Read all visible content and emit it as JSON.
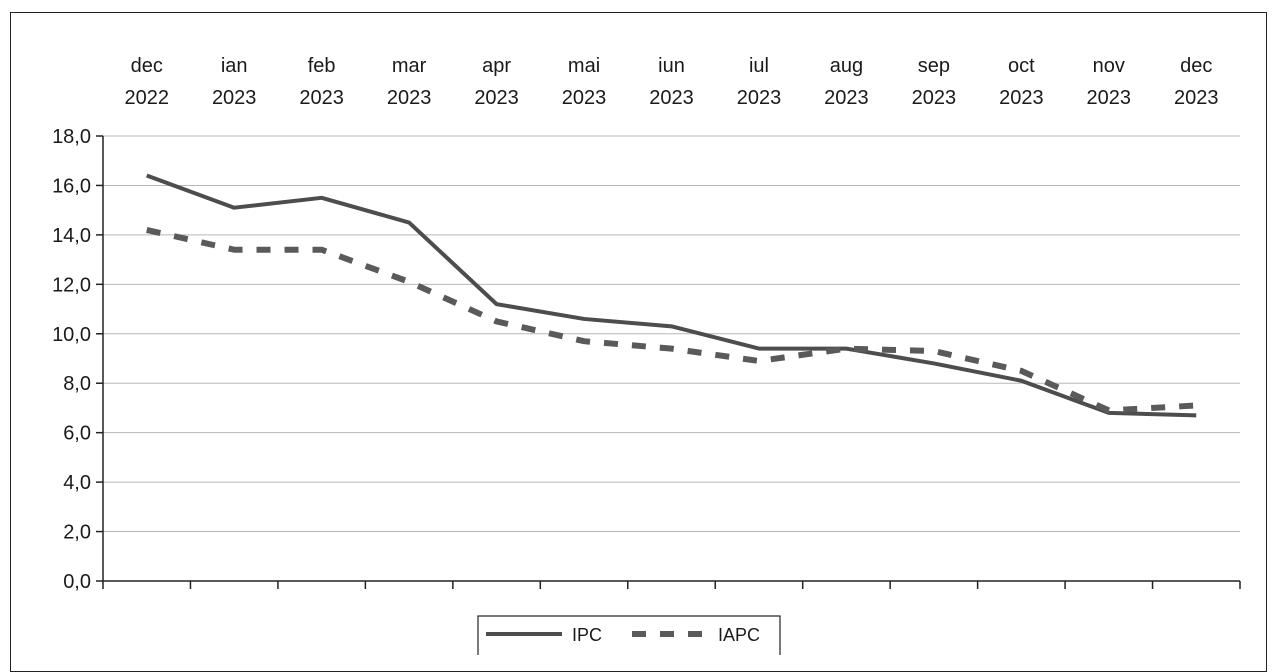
{
  "chart_data": {
    "type": "line",
    "x_categories": [
      [
        "dec",
        "2022"
      ],
      [
        "ian",
        "2023"
      ],
      [
        "feb",
        "2023"
      ],
      [
        "mar",
        "2023"
      ],
      [
        "apr",
        "2023"
      ],
      [
        "mai",
        "2023"
      ],
      [
        "iun",
        "2023"
      ],
      [
        "iul",
        "2023"
      ],
      [
        "aug",
        "2023"
      ],
      [
        "sep",
        "2023"
      ],
      [
        "oct",
        "2023"
      ],
      [
        "nov",
        "2023"
      ],
      [
        "dec",
        "2023"
      ]
    ],
    "x_axis_position": "top",
    "y_ticks": [
      "0,0",
      "2,0",
      "4,0",
      "6,0",
      "8,0",
      "10,0",
      "12,0",
      "14,0",
      "16,0",
      "18,0"
    ],
    "ylim": [
      0,
      18
    ],
    "grid": true,
    "legend_position": "bottom",
    "series": [
      {
        "name": "IPC",
        "style": "solid",
        "color": "#4d4d4d",
        "values": [
          16.4,
          15.1,
          15.5,
          14.5,
          11.2,
          10.6,
          10.3,
          9.4,
          9.4,
          8.8,
          8.1,
          6.8,
          6.7
        ]
      },
      {
        "name": "IAPC",
        "style": "dashed",
        "color": "#5a5a5a",
        "values": [
          14.2,
          13.4,
          13.4,
          12.1,
          10.5,
          9.7,
          9.4,
          8.9,
          9.4,
          9.3,
          8.5,
          6.9,
          7.1
        ]
      }
    ]
  }
}
